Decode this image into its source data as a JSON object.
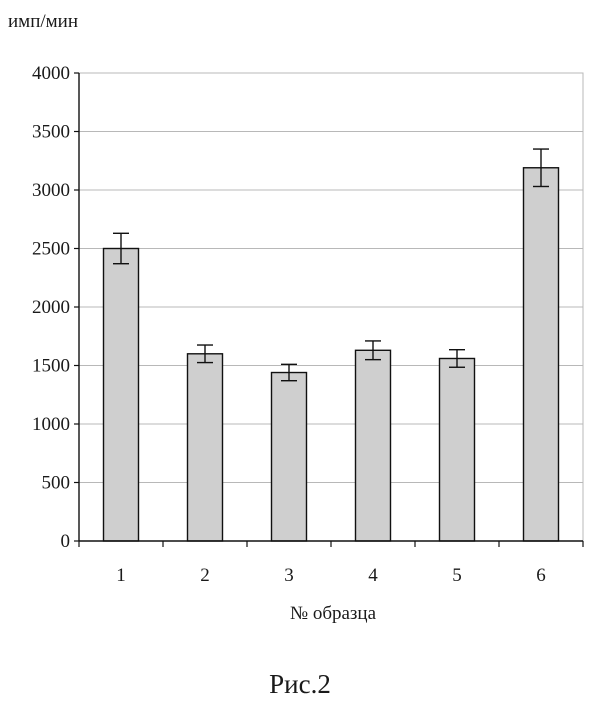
{
  "chart_data": {
    "type": "bar",
    "categories": [
      "1",
      "2",
      "3",
      "4",
      "5",
      "6"
    ],
    "values": [
      2500,
      1600,
      1440,
      1630,
      1560,
      3190
    ],
    "errors": [
      130,
      75,
      70,
      80,
      75,
      160
    ],
    "ylabel": "имп/мин",
    "xlabel": "№  образца",
    "ylim": [
      0,
      4000
    ],
    "yticks": [
      0,
      500,
      1000,
      1500,
      2000,
      2500,
      3000,
      3500,
      4000
    ],
    "grid": true,
    "legend": "none",
    "bar_color": "#cfcfcf",
    "grid_color": "#b8b8b8"
  },
  "figure": {
    "caption": "Рис.2"
  }
}
